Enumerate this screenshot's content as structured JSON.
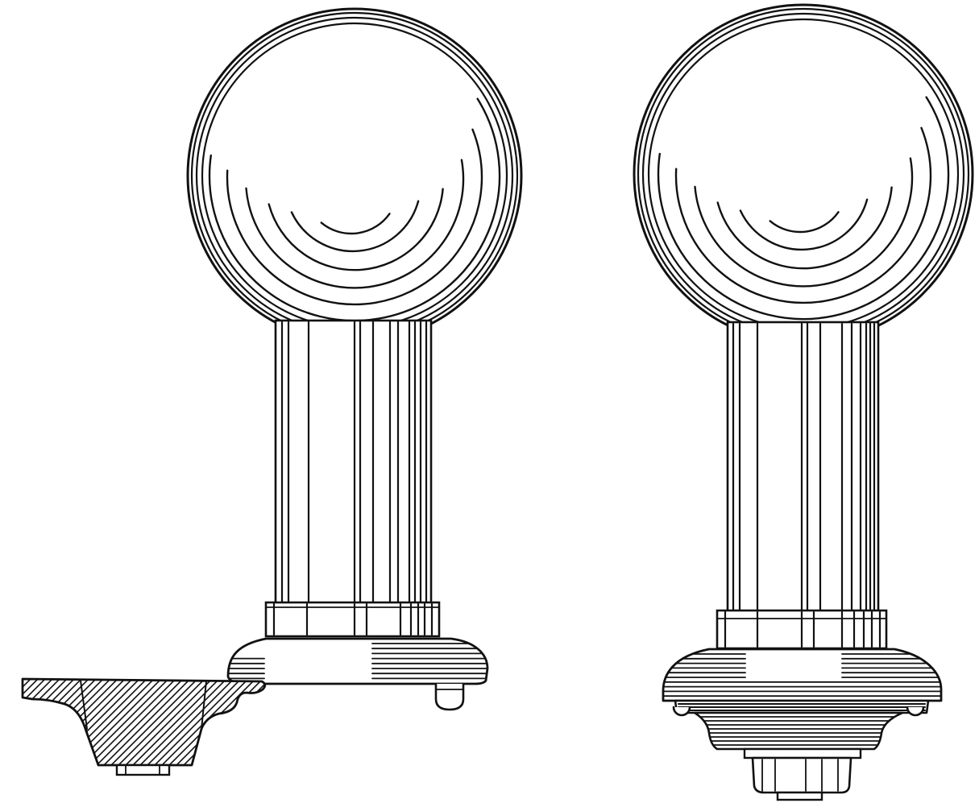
{
  "colors": {
    "ink": "#111111",
    "paper": "#ffffff"
  }
}
